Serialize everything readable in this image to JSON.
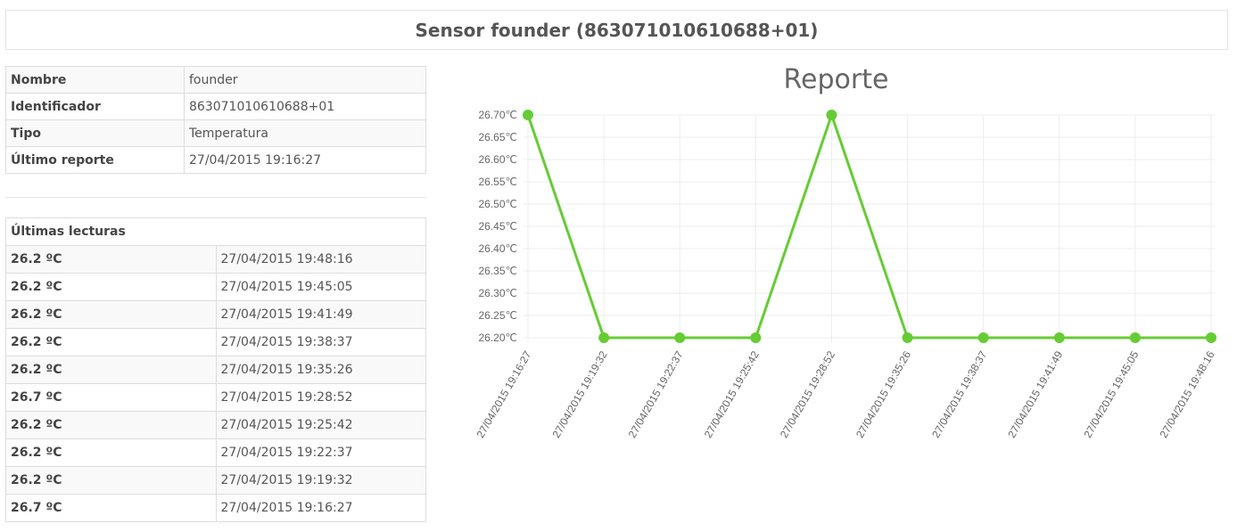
{
  "header": {
    "title": "Sensor founder (863071010610688+01)"
  },
  "info": [
    {
      "label": "Nombre",
      "value": "founder"
    },
    {
      "label": "Identificador",
      "value": "863071010610688+01"
    },
    {
      "label": "Tipo",
      "value": "Temperatura"
    },
    {
      "label": "Último reporte",
      "value": "27/04/2015 19:16:27"
    }
  ],
  "readings": {
    "title": "Últimas lecturas",
    "rows": [
      {
        "temp": "26.2 ºC",
        "time": "27/04/2015 19:48:16"
      },
      {
        "temp": "26.2 ºC",
        "time": "27/04/2015 19:45:05"
      },
      {
        "temp": "26.2 ºC",
        "time": "27/04/2015 19:41:49"
      },
      {
        "temp": "26.2 ºC",
        "time": "27/04/2015 19:38:37"
      },
      {
        "temp": "26.2 ºC",
        "time": "27/04/2015 19:35:26"
      },
      {
        "temp": "26.7 ºC",
        "time": "27/04/2015 19:28:52"
      },
      {
        "temp": "26.2 ºC",
        "time": "27/04/2015 19:25:42"
      },
      {
        "temp": "26.2 ºC",
        "time": "27/04/2015 19:22:37"
      },
      {
        "temp": "26.2 ºC",
        "time": "27/04/2015 19:19:32"
      },
      {
        "temp": "26.7 ºC",
        "time": "27/04/2015 19:16:27"
      }
    ]
  },
  "chart_data": {
    "type": "line",
    "title": "Reporte",
    "xlabel": "",
    "ylabel": "",
    "x": [
      "27/04/2015 19:16:27",
      "27/04/2015 19:19:32",
      "27/04/2015 19:22:37",
      "27/04/2015 19:25:42",
      "27/04/2015 19:28:52",
      "27/04/2015 19:35:26",
      "27/04/2015 19:38:37",
      "27/04/2015 19:41:49",
      "27/04/2015 19:45:05",
      "27/04/2015 19:48:16"
    ],
    "series": [
      {
        "values": [
          26.7,
          26.2,
          26.2,
          26.2,
          26.7,
          26.2,
          26.2,
          26.2,
          26.2,
          26.2
        ],
        "color": "#66cc33"
      }
    ],
    "ylim": [
      26.2,
      26.7
    ],
    "yticks": [
      "26.70℃",
      "26.65℃",
      "26.60℃",
      "26.55℃",
      "26.50℃",
      "26.45℃",
      "26.40℃",
      "26.35℃",
      "26.30℃",
      "26.25℃",
      "26.20℃"
    ],
    "grid": true
  }
}
